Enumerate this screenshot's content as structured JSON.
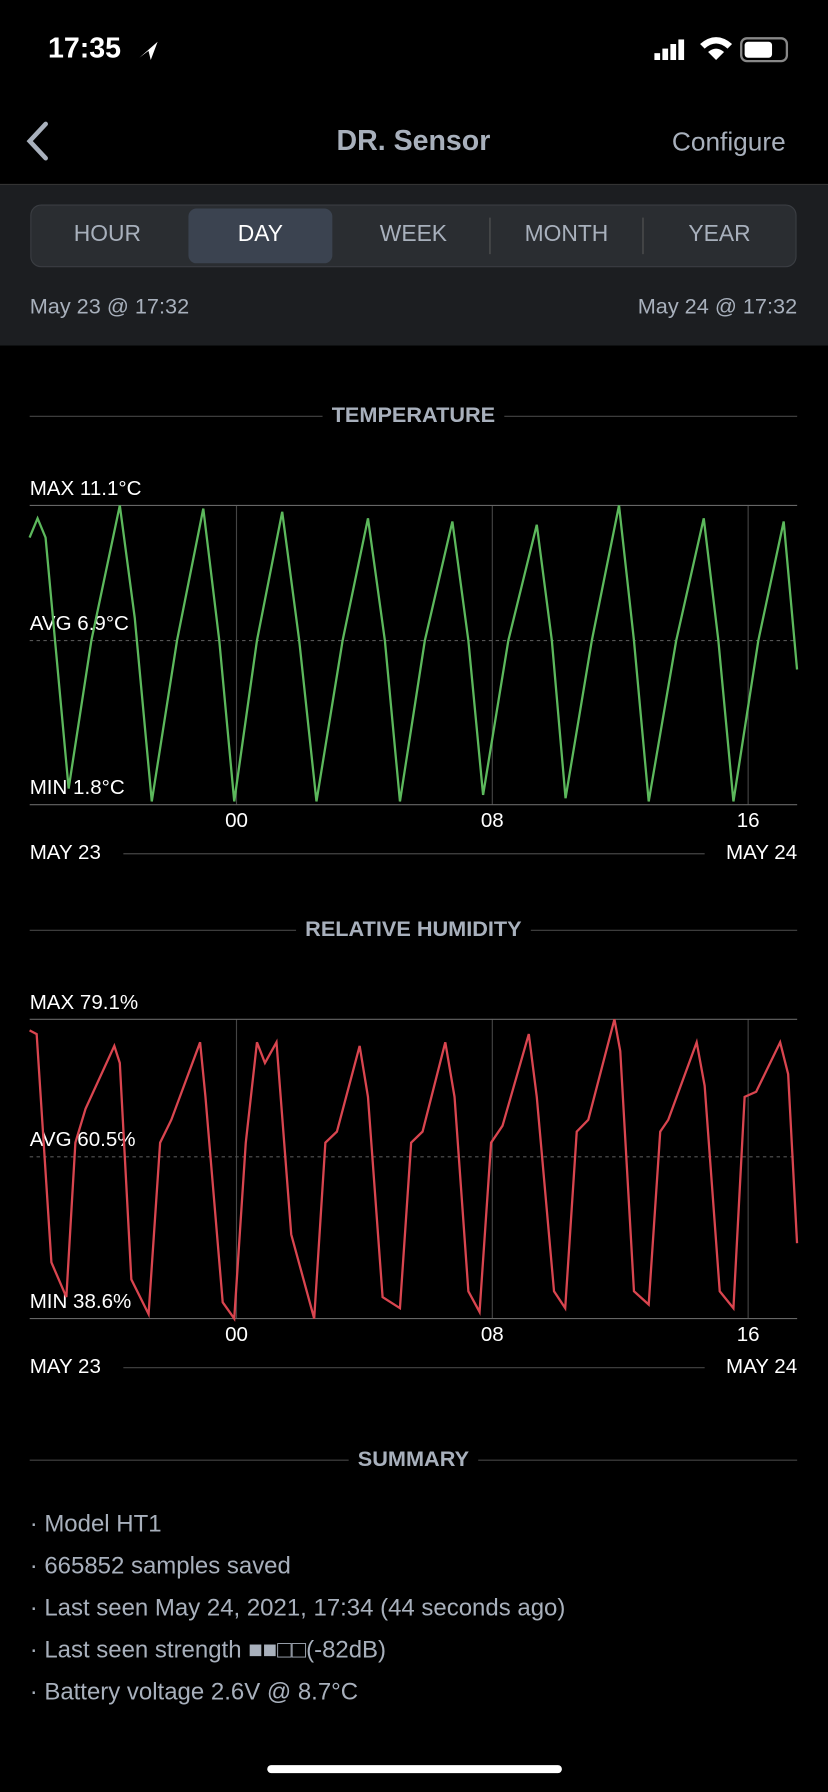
{
  "status_bar": {
    "time": "17:35"
  },
  "nav": {
    "title": "DR. Sensor",
    "action": "Configure"
  },
  "tabs": [
    "HOUR",
    "DAY",
    "WEEK",
    "MONTH",
    "YEAR"
  ],
  "selected_tab": "DAY",
  "range": {
    "start": "May 23 @ 17:32",
    "end": "May 24 @ 17:32"
  },
  "chart_data": [
    {
      "type": "line",
      "title": "TEMPERATURE",
      "color": "#5cb85c",
      "start_label": "MAY 23",
      "end_label": "MAY 24",
      "xlim": [
        17.533,
        41.533
      ],
      "xticks": [
        {
          "value": 24,
          "label": "00"
        },
        {
          "value": 32,
          "label": "08"
        },
        {
          "value": 40,
          "label": "16"
        }
      ],
      "ylim": [
        1.8,
        11.1
      ],
      "yticks": [
        {
          "value": 11.1,
          "label": "MAX 11.1°C"
        },
        {
          "value": 6.9,
          "label": "AVG 6.9°C"
        },
        {
          "value": 1.8,
          "label": "MIN 1.8°C"
        }
      ],
      "x": [
        17.53,
        17.78,
        18.03,
        18.75,
        19.46,
        20.35,
        20.82,
        21.35,
        22.14,
        22.96,
        23.46,
        23.93,
        24.64,
        25.43,
        25.96,
        26.5,
        27.32,
        28.11,
        28.64,
        29.11,
        29.89,
        30.75,
        31.25,
        31.71,
        32.5,
        33.39,
        33.86,
        34.29,
        35.11,
        35.96,
        36.43,
        36.89,
        37.75,
        38.61,
        39.07,
        39.54,
        40.32,
        41.11,
        41.53
      ],
      "values": [
        10.1,
        10.7,
        10.1,
        2.3,
        6.9,
        11.1,
        7.6,
        1.9,
        6.9,
        11.0,
        6.9,
        1.9,
        6.9,
        10.9,
        6.9,
        1.9,
        6.9,
        10.7,
        6.9,
        1.9,
        6.9,
        10.6,
        6.9,
        2.1,
        6.9,
        10.5,
        6.9,
        2.0,
        6.9,
        11.1,
        6.9,
        1.9,
        6.9,
        10.7,
        6.9,
        1.9,
        6.9,
        10.6,
        6.0
      ]
    },
    {
      "type": "line",
      "title": "RELATIVE HUMIDITY",
      "color": "#d9454f",
      "start_label": "MAY 23",
      "end_label": "MAY 24",
      "xlim": [
        17.533,
        41.533
      ],
      "xticks": [
        {
          "value": 24,
          "label": "00"
        },
        {
          "value": 32,
          "label": "08"
        },
        {
          "value": 40,
          "label": "16"
        }
      ],
      "ylim": [
        38.6,
        79.1
      ],
      "yticks": [
        {
          "value": 79.1,
          "label": "MAX 79.1%"
        },
        {
          "value": 60.5,
          "label": "AVG 60.5%"
        },
        {
          "value": 38.6,
          "label": "MIN 38.6%"
        }
      ],
      "x": [
        17.53,
        17.75,
        18.21,
        18.68,
        18.96,
        19.28,
        20.18,
        20.35,
        20.71,
        21.25,
        21.61,
        21.96,
        22.86,
        23.03,
        23.57,
        23.93,
        24.29,
        24.64,
        24.89,
        25.25,
        25.71,
        26.43,
        26.78,
        27.14,
        27.85,
        28.11,
        28.57,
        29.11,
        29.46,
        29.82,
        30.53,
        30.82,
        31.25,
        31.6,
        31.96,
        32.32,
        33.14,
        33.39,
        33.93,
        34.28,
        34.64,
        35.0,
        35.82,
        36.0,
        36.43,
        36.89,
        37.25,
        37.5,
        38.39,
        38.64,
        39.11,
        39.54,
        39.89,
        40.25,
        41.0,
        41.25,
        41.53
      ],
      "values": [
        77.6,
        77.1,
        46.2,
        41.5,
        62.4,
        67.0,
        75.5,
        73.2,
        43.9,
        39.2,
        62.4,
        65.5,
        76.0,
        68.6,
        40.8,
        38.6,
        62.4,
        76.0,
        73.2,
        76.0,
        50.0,
        38.6,
        62.4,
        63.9,
        75.5,
        68.6,
        41.5,
        40.0,
        62.4,
        63.9,
        76.0,
        68.6,
        42.3,
        39.5,
        62.4,
        64.7,
        77.1,
        68.6,
        42.3,
        40.0,
        63.9,
        65.5,
        79.1,
        74.8,
        42.3,
        40.5,
        63.9,
        65.5,
        76.0,
        70.1,
        42.3,
        40.0,
        68.6,
        69.3,
        76.0,
        71.7,
        48.8
      ]
    }
  ],
  "summary": {
    "title": "SUMMARY",
    "lines": [
      "· Model HT1",
      "· 665852 samples saved",
      "· Last seen May 24, 2021, 17:34 (44 seconds ago)",
      "· Last seen strength  ■■□□(-82dB)",
      "· Battery voltage 2.6V @ 8.7°C"
    ]
  }
}
